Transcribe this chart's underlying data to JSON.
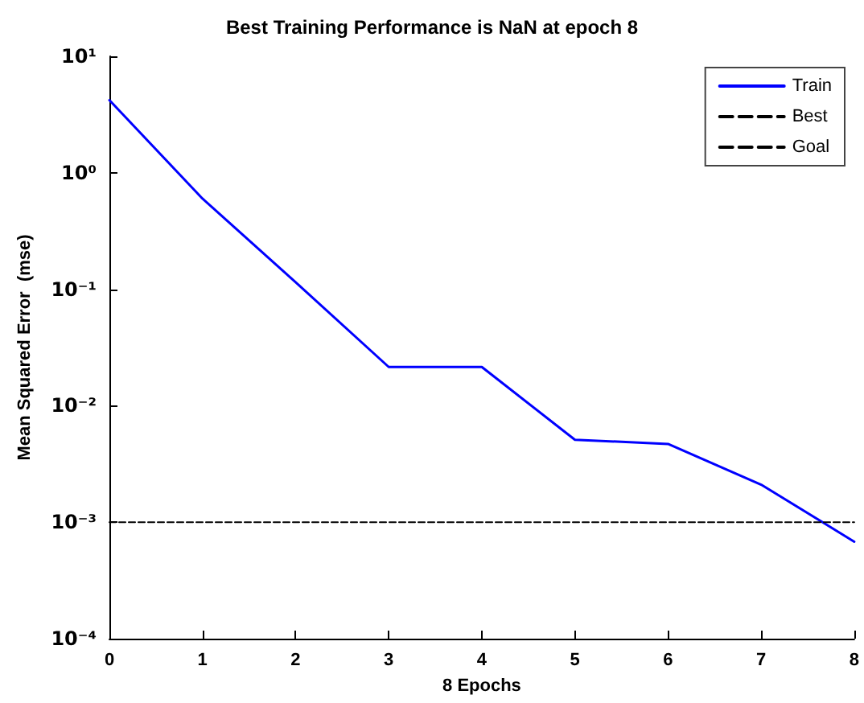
{
  "chart_data": {
    "type": "line",
    "title": "Best Training Performance is NaN at epoch 8",
    "xlabel": "8 Epochs",
    "ylabel": "Mean Squared Error  (mse)",
    "x": [
      0,
      1,
      2,
      3,
      4,
      5,
      6,
      7,
      8
    ],
    "log": "y",
    "xlim": [
      0,
      8
    ],
    "xticks": [
      0,
      1,
      2,
      3,
      4,
      5,
      6,
      7,
      8
    ],
    "ylim": [
      0.0001,
      10
    ],
    "yticks": [
      {
        "value": 0.0001,
        "label": "10⁻⁴"
      },
      {
        "value": 0.001,
        "label": "10⁻³"
      },
      {
        "value": 0.01,
        "label": "10⁻²"
      },
      {
        "value": 0.1,
        "label": "10⁻¹"
      },
      {
        "value": 1,
        "label": "10⁰"
      },
      {
        "value": 10,
        "label": "10¹"
      }
    ],
    "grid": false,
    "legend": "top right",
    "marker": "none",
    "series": [
      {
        "name": "Train",
        "color": "#0000ff",
        "line_style": "solid",
        "values": [
          4.2,
          0.6,
          0.115,
          0.0215,
          0.0215,
          0.0051,
          0.0047,
          0.0021,
          0.00068
        ]
      },
      {
        "name": "Best",
        "color": "#000000",
        "line_style": "dashed",
        "values": [
          null,
          null,
          null,
          null,
          null,
          null,
          null,
          null,
          null
        ]
      },
      {
        "name": "Goal",
        "color": "#000000",
        "line_style": "dashed",
        "x": [
          0,
          8
        ],
        "values": [
          0.001,
          0.001
        ]
      }
    ]
  }
}
